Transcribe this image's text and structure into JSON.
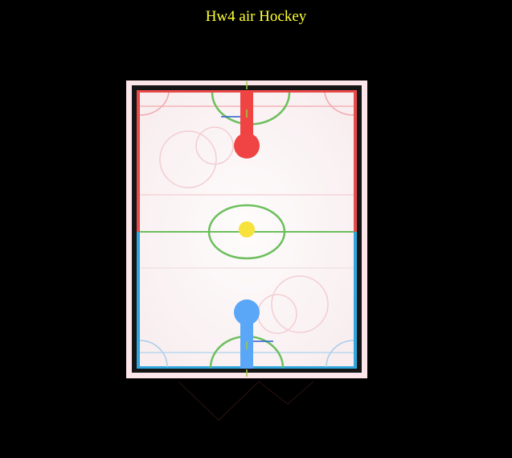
{
  "title": "Hw4 air Hockey",
  "colors": {
    "background": "#000000",
    "title": "#ffff33",
    "frame": "#fde6e9",
    "border": "#151515",
    "surface": "#fdf8f9",
    "red_side": "#e84a4a",
    "blue_side": "#2fa6dd",
    "red_paddle": "#f04444",
    "blue_paddle": "#5aa6f7",
    "puck": "#f7e23c",
    "center_circle": "#6cbf5c",
    "goal_marker": "#9ccc3b"
  },
  "players": {
    "top": {
      "side": "red",
      "icon": "red-paddle-icon"
    },
    "bottom": {
      "side": "blue",
      "icon": "blue-paddle-icon"
    }
  },
  "puck": {
    "icon": "puck-icon"
  }
}
